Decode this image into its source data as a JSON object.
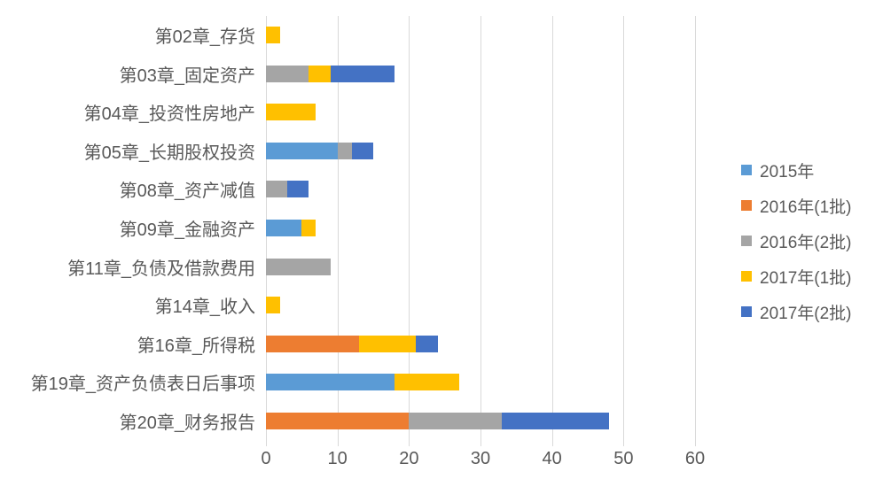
{
  "colors": {
    "background": "#ffffff",
    "text": "#595959",
    "gridline": "#d9d9d9"
  },
  "chart_data": {
    "type": "bar",
    "orientation": "horizontal",
    "stacked": true,
    "title": "",
    "xlabel": "",
    "ylabel": "",
    "xlim": [
      0,
      60
    ],
    "x_ticks": [
      0,
      10,
      20,
      30,
      40,
      50,
      60
    ],
    "grid": true,
    "legend_position": "right",
    "categories": [
      "第02章_存货",
      "第03章_固定资产",
      "第04章_投资性房地产",
      "第05章_长期股权投资",
      "第08章_资产减值",
      "第09章_金融资产",
      "第11章_负债及借款费用",
      "第14章_收入",
      "第16章_所得税",
      "第19章_资产负债表日后事项",
      "第20章_财务报告"
    ],
    "series": [
      {
        "name": "2015年",
        "color": "#5B9BD5",
        "values": [
          0,
          0,
          0,
          10,
          0,
          5,
          0,
          0,
          0,
          18,
          0
        ]
      },
      {
        "name": "2016年(1批)",
        "color": "#ED7D31",
        "values": [
          0,
          0,
          0,
          0,
          0,
          0,
          0,
          0,
          13,
          0,
          20
        ]
      },
      {
        "name": "2016年(2批)",
        "color": "#A5A5A5",
        "values": [
          0,
          6,
          0,
          2,
          3,
          0,
          9,
          0,
          0,
          0,
          13
        ]
      },
      {
        "name": "2017年(1批)",
        "color": "#FFC000",
        "values": [
          2,
          3,
          7,
          0,
          0,
          2,
          0,
          2,
          8,
          9,
          0
        ]
      },
      {
        "name": "2017年(2批)",
        "color": "#4472C4",
        "values": [
          0,
          9,
          0,
          3,
          3,
          0,
          0,
          0,
          3,
          0,
          15
        ]
      }
    ]
  }
}
